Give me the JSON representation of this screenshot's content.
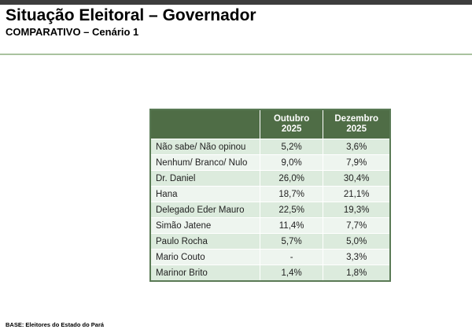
{
  "header": {
    "title": "Situação Eleitoral – Governador",
    "subtitle": "COMPARATIVO – Cenário 1"
  },
  "table": {
    "columns": [
      "",
      "Outubro 2025",
      "Dezembro 2025"
    ],
    "rows": [
      {
        "label": "Não sabe/ Não opinou",
        "out": "5,2%",
        "dez": "3,6%"
      },
      {
        "label": "Nenhum/ Branco/ Nulo",
        "out": "9,0%",
        "dez": "7,9%"
      },
      {
        "label": "Dr. Daniel",
        "out": "26,0%",
        "dez": "30,4%"
      },
      {
        "label": "Hana",
        "out": "18,7%",
        "dez": "21,1%"
      },
      {
        "label": "Delegado Eder Mauro",
        "out": "22,5%",
        "dez": "19,3%"
      },
      {
        "label": "Simão Jatene",
        "out": "11,4%",
        "dez": "7,7%"
      },
      {
        "label": "Paulo Rocha",
        "out": "5,7%",
        "dez": "5,0%"
      },
      {
        "label": "Mario Couto",
        "out": "-",
        "dez": "3,3%"
      },
      {
        "label": "Marinor Brito",
        "out": "1,4%",
        "dez": "1,8%"
      }
    ]
  },
  "footer": {
    "base": "BASE: Eleitores do Estado do Pará"
  }
}
